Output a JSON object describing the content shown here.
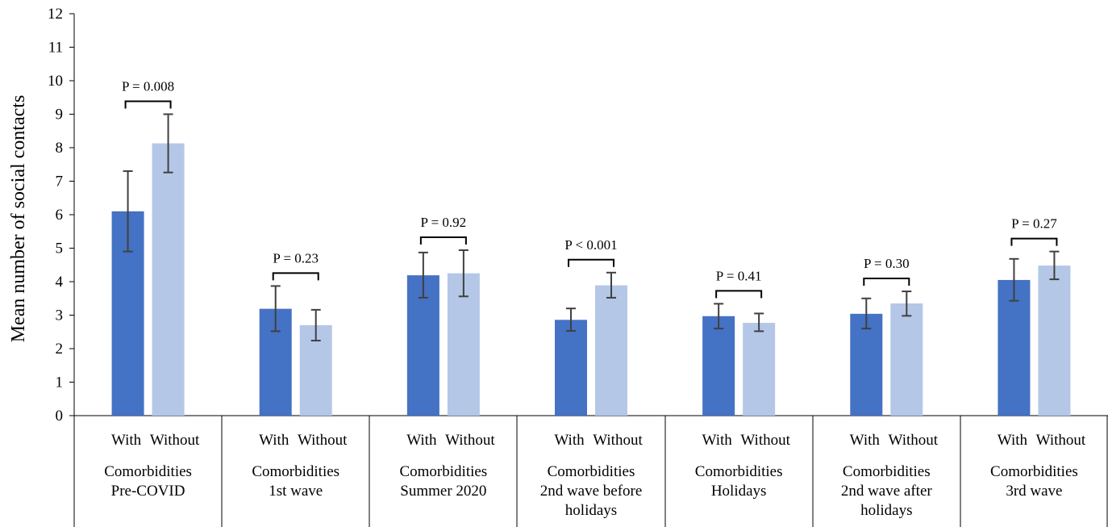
{
  "chart_data": {
    "type": "bar",
    "ylabel": "Mean number of social contacts",
    "ylim": [
      0,
      12
    ],
    "yticks": [
      "0",
      "1",
      "2",
      "3",
      "4",
      "5",
      "6",
      "7",
      "8",
      "9",
      "10",
      "11",
      "12"
    ],
    "grid": false,
    "legend": "none",
    "colors": {
      "With": "#4472C4",
      "Without": "#B4C7E7"
    },
    "groups": [
      {
        "sub": [
          "With",
          "Without"
        ],
        "label": [
          "Comorbidities",
          "Pre-COVID"
        ],
        "values": [
          6.1,
          8.13
        ],
        "errors": [
          [
            4.9,
            7.3
          ],
          [
            7.26,
            9.0
          ]
        ],
        "p": "P = 0.008"
      },
      {
        "sub": [
          "With",
          "Without"
        ],
        "label": [
          "Comorbidities",
          "1st wave"
        ],
        "values": [
          3.19,
          2.7
        ],
        "errors": [
          [
            2.52,
            3.87
          ],
          [
            2.24,
            3.16
          ]
        ],
        "p": "P = 0.23"
      },
      {
        "sub": [
          "With",
          "Without"
        ],
        "label": [
          "Comorbidities",
          "Summer 2020"
        ],
        "values": [
          4.19,
          4.25
        ],
        "errors": [
          [
            3.52,
            4.87
          ],
          [
            3.56,
            4.94
          ]
        ],
        "p": "P = 0.92"
      },
      {
        "sub": [
          "With",
          "Without"
        ],
        "label": [
          "Comorbidities",
          "2nd wave before",
          "holidays"
        ],
        "values": [
          2.86,
          3.89
        ],
        "errors": [
          [
            2.53,
            3.2
          ],
          [
            3.52,
            4.27
          ]
        ],
        "p": "P < 0.001"
      },
      {
        "sub": [
          "With",
          "Without"
        ],
        "label": [
          "Comorbidities",
          "Holidays"
        ],
        "values": [
          2.97,
          2.77
        ],
        "errors": [
          [
            2.6,
            3.34
          ],
          [
            2.52,
            3.05
          ]
        ],
        "p": "P = 0.41"
      },
      {
        "sub": [
          "With",
          "Without"
        ],
        "label": [
          "Comorbidities",
          "2nd wave after",
          "holidays"
        ],
        "values": [
          3.04,
          3.35
        ],
        "errors": [
          [
            2.6,
            3.5
          ],
          [
            2.98,
            3.71
          ]
        ],
        "p": "P = 0.30"
      },
      {
        "sub": [
          "With",
          "Without"
        ],
        "label": [
          "Comorbidities",
          "3rd wave"
        ],
        "values": [
          4.05,
          4.48
        ],
        "errors": [
          [
            3.43,
            4.68
          ],
          [
            4.07,
            4.9
          ]
        ],
        "p": "P = 0.27"
      }
    ]
  }
}
